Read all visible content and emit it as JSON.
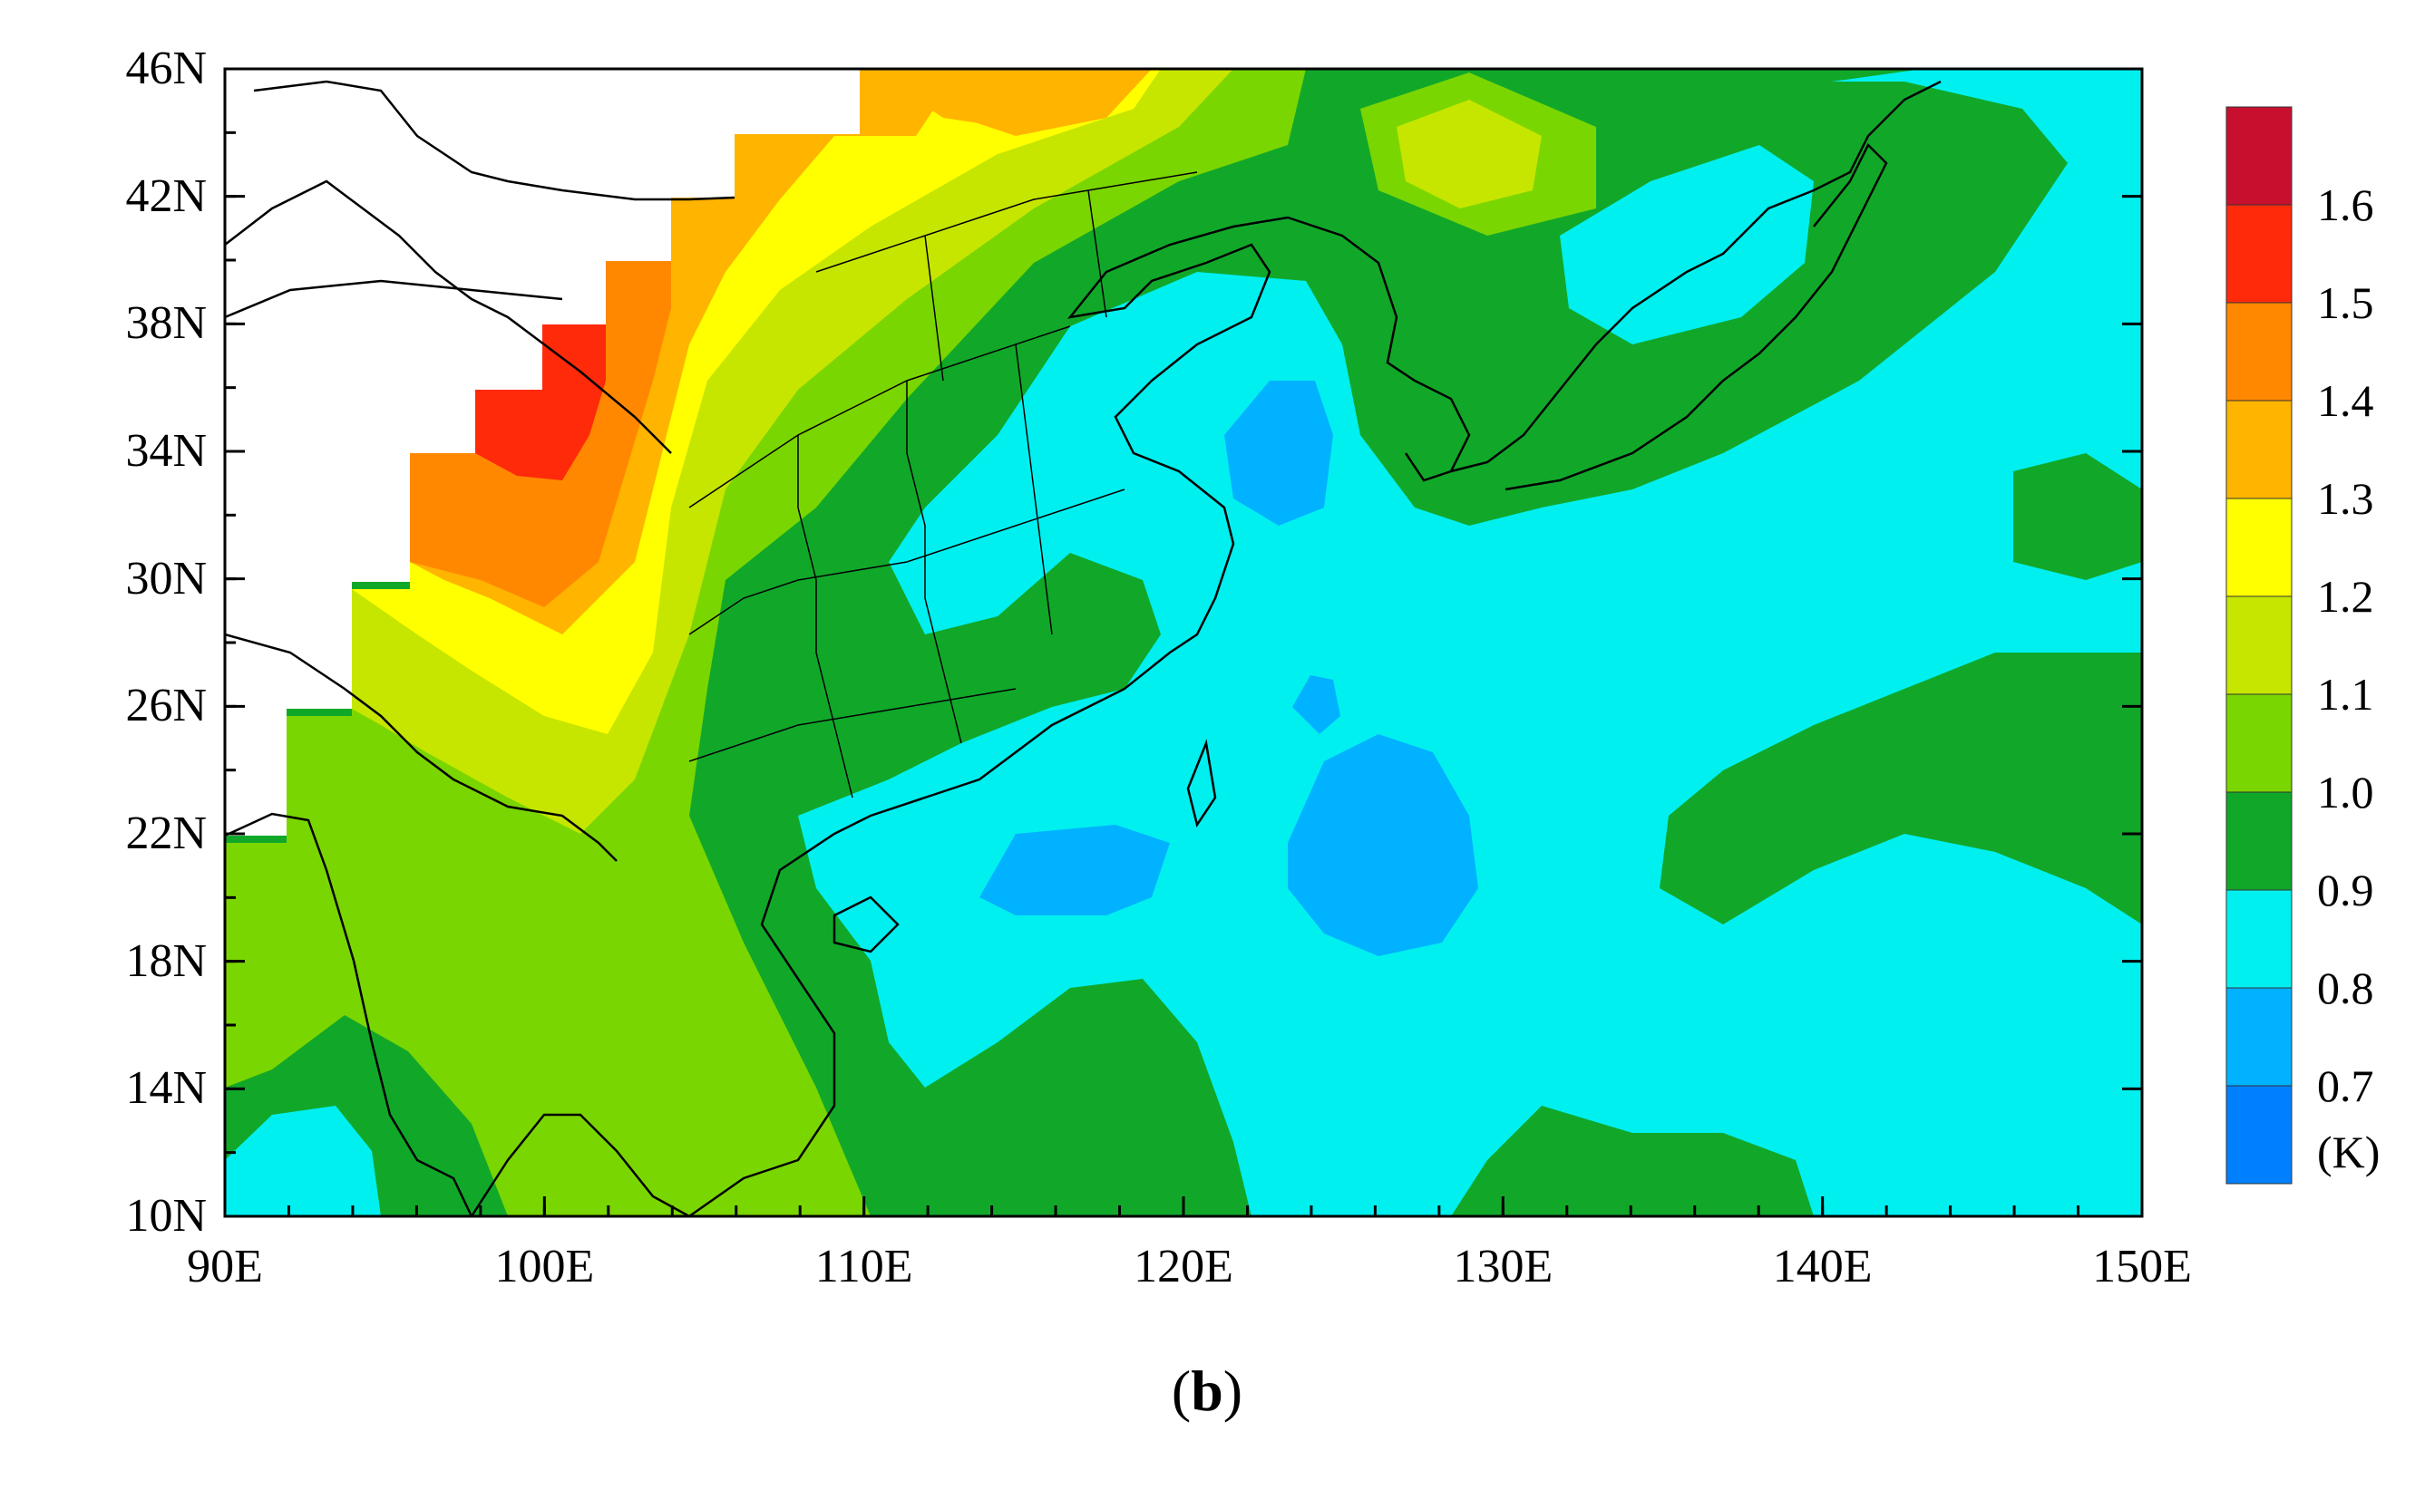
{
  "panel_label": {
    "open": "(",
    "letter": "b",
    "close": ")"
  },
  "map": {
    "lon_range": [
      90,
      150
    ],
    "lat_range": [
      10,
      46
    ],
    "lat_ticks": [
      "46N",
      "42N",
      "38N",
      "34N",
      "30N",
      "26N",
      "22N",
      "18N",
      "14N",
      "10N"
    ],
    "lon_ticks": [
      "90E",
      "100E",
      "110E",
      "120E",
      "130E",
      "140E",
      "150E"
    ]
  },
  "colorbar": {
    "unit": "(K)",
    "labels": [
      "1.6",
      "1.5",
      "1.4",
      "1.3",
      "1.2",
      "1.1",
      "1.0",
      "0.9",
      "0.8",
      "0.7"
    ],
    "colors": [
      "#c8102e",
      "#ff2a0a",
      "#ff8800",
      "#ffb400",
      "#ffff00",
      "#c6e600",
      "#7ad600",
      "#11a82a",
      "#00f0f0",
      "#00b2ff",
      "#0080ff"
    ]
  }
}
